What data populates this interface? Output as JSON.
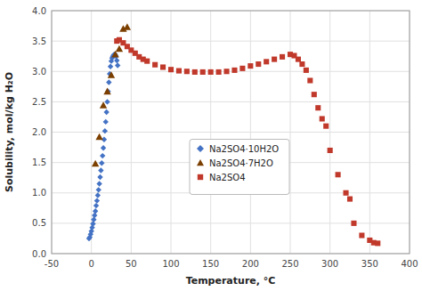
{
  "chart_data": {
    "type": "scatter",
    "xlabel": "Temperature, °C",
    "ylabel": "Solubility, mol/kg H₂O",
    "xlim": [
      -50,
      400
    ],
    "ylim": [
      0.0,
      4.0
    ],
    "xticks": [
      -50,
      0,
      50,
      100,
      150,
      200,
      250,
      300,
      350,
      400
    ],
    "yticks": [
      {
        "value": 0.0,
        "label": "0.0"
      },
      0.5,
      {
        "value": 1.0,
        "label": "1.0"
      },
      1.5,
      {
        "value": 2.0,
        "label": "2.0"
      },
      2.5,
      {
        "value": 3.0,
        "label": "3.0"
      },
      3.5,
      {
        "value": 4.0,
        "label": "4.0"
      }
    ],
    "grid": true,
    "legend": "center",
    "series": [
      {
        "name": "Na2SO4·10H2O",
        "color": "#4472c4",
        "marker": "diamond",
        "x": [
          -3,
          -2,
          -1,
          0,
          1,
          2,
          3,
          4,
          5,
          6,
          7,
          8,
          9,
          10,
          11,
          12,
          13,
          14,
          15,
          16,
          17,
          18,
          19,
          20,
          21,
          22,
          23,
          24,
          25,
          26,
          27,
          28,
          29,
          30,
          31,
          32,
          33
        ],
        "values": [
          0.25,
          0.27,
          0.32,
          0.37,
          0.43,
          0.49,
          0.56,
          0.63,
          0.7,
          0.79,
          0.87,
          0.96,
          1.05,
          1.15,
          1.26,
          1.37,
          1.49,
          1.61,
          1.74,
          1.88,
          2.02,
          2.17,
          2.33,
          2.5,
          2.67,
          2.82,
          2.96,
          3.08,
          3.17,
          3.22,
          3.25,
          3.27,
          3.28,
          3.28,
          3.25,
          3.18,
          3.1
        ]
      },
      {
        "name": "Na2SO4·7H2O",
        "color": "#7b3f00",
        "marker": "triangle",
        "x": [
          5,
          10,
          15,
          20,
          25,
          30,
          35,
          40,
          45
        ],
        "values": [
          1.48,
          1.92,
          2.44,
          2.67,
          2.94,
          3.28,
          3.37,
          3.7,
          3.73
        ]
      },
      {
        "name": "Na2SO4",
        "color": "#c0392b",
        "marker": "square",
        "x": [
          32,
          35,
          40,
          45,
          50,
          55,
          60,
          65,
          70,
          80,
          90,
          100,
          110,
          120,
          130,
          140,
          150,
          160,
          170,
          180,
          190,
          200,
          210,
          220,
          230,
          240,
          250,
          255,
          260,
          265,
          270,
          275,
          280,
          285,
          290,
          295,
          300,
          310,
          320,
          325,
          330,
          340,
          350,
          355,
          360
        ],
        "values": [
          3.5,
          3.52,
          3.47,
          3.41,
          3.35,
          3.3,
          3.24,
          3.2,
          3.17,
          3.11,
          3.07,
          3.03,
          3.01,
          3.0,
          2.99,
          2.99,
          2.99,
          2.99,
          3.0,
          3.02,
          3.05,
          3.09,
          3.12,
          3.16,
          3.2,
          3.24,
          3.28,
          3.26,
          3.2,
          3.12,
          3.02,
          2.85,
          2.62,
          2.4,
          2.22,
          2.1,
          1.7,
          1.3,
          1.0,
          0.9,
          0.5,
          0.3,
          0.22,
          0.18,
          0.17
        ]
      }
    ]
  }
}
